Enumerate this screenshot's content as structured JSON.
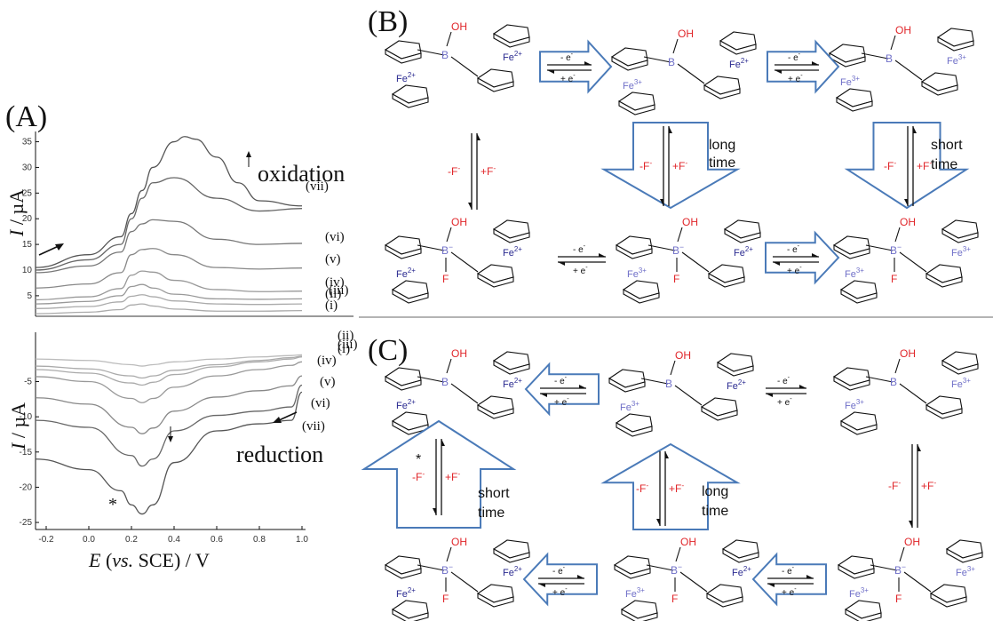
{
  "panels": {
    "A": "(A)",
    "B": "(B)",
    "C": "(C)"
  },
  "chart_data": [
    {
      "type": "line",
      "annotation": "oxidation",
      "ylabel": "I / µA",
      "ylim": [
        1,
        37
      ],
      "yticks": [
        5,
        10,
        15,
        20,
        25,
        30,
        35
      ],
      "xlim": [
        -0.25,
        1.0
      ],
      "series": [
        {
          "label": "(i)",
          "x": [
            -0.25,
            0.0,
            0.15,
            0.2,
            0.25,
            0.3,
            0.4,
            0.6,
            0.8,
            1.0
          ],
          "y": [
            1.5,
            1.8,
            2.3,
            3.2,
            3.4,
            3.0,
            2.4,
            2.0,
            2.0,
            2.1
          ]
        },
        {
          "label": "(ii)",
          "x": [
            -0.25,
            0.0,
            0.15,
            0.2,
            0.25,
            0.3,
            0.4,
            0.6,
            0.8,
            1.0
          ],
          "y": [
            2.5,
            2.9,
            3.8,
            4.9,
            5.2,
            4.8,
            4.0,
            3.4,
            3.3,
            3.4
          ]
        },
        {
          "label": "(iii)",
          "x": [
            -0.25,
            0.0,
            0.15,
            0.2,
            0.25,
            0.3,
            0.4,
            0.6,
            0.8,
            1.0
          ],
          "y": [
            3.4,
            3.9,
            5.0,
            6.8,
            7.2,
            6.5,
            5.3,
            4.4,
            4.3,
            4.4
          ]
        },
        {
          "label": "(iv)",
          "x": [
            -0.25,
            0.0,
            0.15,
            0.2,
            0.25,
            0.3,
            0.4,
            0.6,
            0.8,
            1.0
          ],
          "y": [
            4.2,
            4.8,
            6.4,
            9.0,
            9.8,
            9.6,
            8.0,
            6.2,
            5.8,
            5.9
          ]
        },
        {
          "label": "(v)",
          "x": [
            -0.25,
            0.0,
            0.15,
            0.2,
            0.25,
            0.3,
            0.4,
            0.6,
            0.8,
            1.0
          ],
          "y": [
            6.5,
            7.3,
            9.5,
            13.0,
            14.0,
            14.2,
            13.0,
            10.5,
            10.2,
            10.4
          ]
        },
        {
          "label": "(vi)",
          "x": [
            -0.25,
            0.0,
            0.15,
            0.2,
            0.25,
            0.3,
            0.4,
            0.6,
            0.8,
            1.0
          ],
          "y": [
            9.5,
            10.8,
            13.5,
            17.5,
            19.0,
            19.8,
            19.5,
            16.0,
            15.0,
            15.2
          ]
        },
        {
          "label": "(vii)",
          "x": [
            -0.25,
            0.0,
            0.15,
            0.2,
            0.25,
            0.3,
            0.4,
            0.6,
            0.8,
            1.0
          ],
          "y": [
            10.0,
            12.0,
            15.0,
            20.0,
            24.0,
            27.0,
            28.0,
            24.0,
            21.5,
            22.0
          ]
        },
        {
          "label": "",
          "x": [
            -0.25,
            0.0,
            0.15,
            0.2,
            0.25,
            0.3,
            0.4,
            0.45,
            0.5,
            0.6,
            0.7,
            0.8,
            1.0
          ],
          "y": [
            10.5,
            13.0,
            16.5,
            21.0,
            25.5,
            30.0,
            35.0,
            36.0,
            35.5,
            32.0,
            27.0,
            23.5,
            22.5
          ]
        }
      ]
    },
    {
      "type": "line",
      "annotation": "reduction",
      "ylabel": "I / µA",
      "xlabel": "E (vs. SCE) / V",
      "ylim": [
        -26,
        2
      ],
      "yticks": [
        -25,
        -20,
        -15,
        -10,
        -5
      ],
      "xlim": [
        -0.25,
        1.0
      ],
      "xticks": [
        -0.2,
        0.0,
        0.2,
        0.4,
        0.6,
        0.8,
        1.0
      ],
      "series": [
        {
          "label": "(i)",
          "x": [
            -0.25,
            0.0,
            0.2,
            0.25,
            0.3,
            0.4,
            0.6,
            0.8,
            0.95,
            1.0
          ],
          "y": [
            -1.8,
            -2.0,
            -2.6,
            -2.8,
            -2.6,
            -2.2,
            -1.8,
            -1.5,
            -1.3,
            -1.2
          ]
        },
        {
          "label": "(ii)",
          "x": [
            -0.25,
            0.0,
            0.2,
            0.25,
            0.3,
            0.4,
            0.6,
            0.8,
            0.95,
            1.0
          ],
          "y": [
            -2.8,
            -3.2,
            -4.2,
            -4.5,
            -4.2,
            -3.4,
            -2.6,
            -2.0,
            -1.6,
            -1.4
          ]
        },
        {
          "label": "(iii)",
          "x": [
            -0.25,
            0.0,
            0.2,
            0.25,
            0.3,
            0.4,
            0.6,
            0.8,
            0.95,
            1.0
          ],
          "y": [
            -3.3,
            -3.8,
            -5.2,
            -5.5,
            -5.1,
            -4.0,
            -2.9,
            -2.2,
            -1.8,
            -1.5
          ]
        },
        {
          "label": "(iv)",
          "x": [
            -0.25,
            0.0,
            0.2,
            0.25,
            0.3,
            0.4,
            0.6,
            0.8,
            0.95,
            1.0
          ],
          "y": [
            -4.3,
            -5.0,
            -7.4,
            -8.0,
            -7.4,
            -5.8,
            -4.2,
            -3.3,
            -2.7,
            -2.2
          ]
        },
        {
          "label": "(v)",
          "x": [
            -0.25,
            0.0,
            0.2,
            0.25,
            0.3,
            0.4,
            0.6,
            0.8,
            0.95,
            1.0
          ],
          "y": [
            -7.3,
            -8.2,
            -11.5,
            -12.4,
            -11.6,
            -9.2,
            -7.2,
            -6.3,
            -5.6,
            -4.2
          ]
        },
        {
          "label": "(vi)",
          "x": [
            -0.25,
            0.0,
            0.2,
            0.25,
            0.3,
            0.4,
            0.6,
            0.8,
            0.95,
            1.0
          ],
          "y": [
            -10.5,
            -11.5,
            -15.5,
            -17.0,
            -16.0,
            -12.0,
            -9.8,
            -9.2,
            -8.6,
            -5.5
          ]
        },
        {
          "label": "(vii)",
          "x": [
            -0.25,
            0.0,
            0.15,
            0.2,
            0.25,
            0.3,
            0.4,
            0.6,
            0.8,
            0.95,
            1.0
          ],
          "y": [
            -16.0,
            -17.5,
            -20.5,
            -22.5,
            -23.8,
            -22.5,
            -16.5,
            -12.0,
            -11.0,
            -10.5,
            -6.5
          ]
        }
      ]
    }
  ],
  "labels": {
    "oxidation": "oxidation",
    "reduction": "reduction",
    "y_italic": "I",
    "y_rest": " / µA",
    "x_italic_E": "E",
    "x_paren_open": " (",
    "x_italic_vs": "vs.",
    "x_rest": " SCE) / V",
    "star": "*"
  },
  "chem": {
    "OH": "OH",
    "B": "B",
    "Bminus": "B",
    "minus_sup": "−",
    "F": "F",
    "Fe": "Fe",
    "sup2": "2+",
    "sup3": "3+",
    "minus_e": "- e",
    "plus_e": "+ e",
    "e_sup": "-",
    "minus_F": "-F",
    "plus_F": "+F",
    "F_sup": "-",
    "long": "long",
    "short": "short",
    "time": "time",
    "star": "*"
  },
  "colors": {
    "arrow_outline": "#4a7ab8",
    "red_text": "#e0262a",
    "boron": "#7070c8",
    "iron": "#2a2a90",
    "curve": "#777777"
  }
}
